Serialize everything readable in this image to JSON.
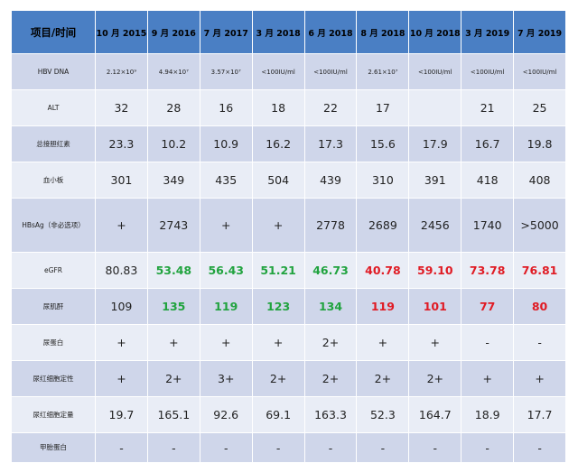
{
  "table": {
    "corner": "项目/时间",
    "columns": [
      "10 月 2015",
      "9 月 2016",
      "7 月 2017",
      "3 月 2018",
      "6 月 2018",
      "8 月 2018",
      "10 月 2018",
      "3 月 2019",
      "7 月 2019"
    ],
    "rows": [
      {
        "label": "HBV DNA",
        "cells": [
          "2.12×10⁹",
          "4.94×10⁷",
          "3.57×10⁷",
          "<100IU/ml",
          "<100IU/ml",
          "2.61×10⁷",
          "<100IU/ml",
          "<100IU/ml",
          "<100IU/ml"
        ]
      },
      {
        "label": "ALT",
        "cells": [
          "32",
          "28",
          "16",
          "18",
          "22",
          "17",
          "",
          "21",
          "25"
        ]
      },
      {
        "label": "总接胆红素",
        "cells": [
          "23.3",
          "10.2",
          "10.9",
          "16.2",
          "17.3",
          "15.6",
          "17.9",
          "16.7",
          "19.8"
        ]
      },
      {
        "label": "血小板",
        "cells": [
          "301",
          "349",
          "435",
          "504",
          "439",
          "310",
          "391",
          "418",
          "408"
        ]
      },
      {
        "label": "HBsAg（非必选项）",
        "cells": [
          "+",
          "2743",
          "+",
          "+",
          "2778",
          "2689",
          "2456",
          "1740",
          ">5000"
        ]
      },
      {
        "label": "eGFR",
        "cells": [
          "80.83",
          "53.48",
          "56.43",
          "51.21",
          "46.73",
          "40.78",
          "59.10",
          "73.78",
          "76.81"
        ]
      },
      {
        "label": "尿肌酐",
        "cells": [
          "109",
          "135",
          "119",
          "123",
          "134",
          "119",
          "101",
          "77",
          "80"
        ]
      },
      {
        "label": "尿蛋白",
        "cells": [
          "+",
          "+",
          "+",
          "+",
          "2+",
          "+",
          "+",
          "-",
          "-"
        ]
      },
      {
        "label": "尿红细胞定性",
        "cells": [
          "+",
          "2+",
          "3+",
          "2+",
          "2+",
          "2+",
          "2+",
          "+",
          "+"
        ]
      },
      {
        "label": "尿红细胞定量",
        "cells": [
          "19.7",
          "165.1",
          "92.6",
          "69.1",
          "163.3",
          "52.3",
          "164.7",
          "18.9",
          "17.7"
        ]
      },
      {
        "label": "甲胎蛋白",
        "cells": [
          "-",
          "-",
          "-",
          "-",
          "-",
          "-",
          "-",
          "-",
          "-"
        ]
      }
    ]
  },
  "colors": {
    "header": "#4a7fc4",
    "row_dark": "#cfd6ea",
    "row_light": "#e9edf6",
    "green": "#21a33f",
    "red": "#e01b24"
  }
}
